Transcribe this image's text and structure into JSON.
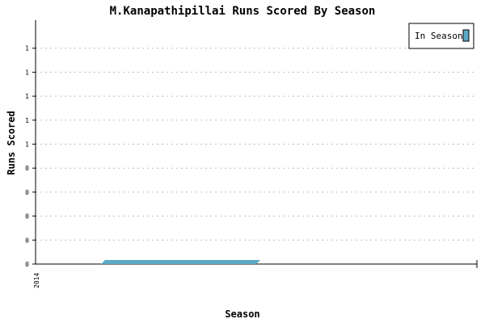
{
  "chart_data": {
    "type": "area",
    "title": "M.Kanapathipillai Runs Scored By Season",
    "xlabel": "Season",
    "ylabel": "Runs Scored",
    "x_tick_labels": [
      "2014"
    ],
    "y_tick_labels": [
      "0",
      "0",
      "0",
      "0",
      "0",
      "1",
      "1",
      "1",
      "1",
      "1"
    ],
    "ylim": [
      0,
      1
    ],
    "grid": true,
    "legend_position": "top-right",
    "series": [
      {
        "name": "In Season",
        "x": [
          "2014"
        ],
        "values": [
          0
        ],
        "color": "#5ba8c4"
      }
    ]
  }
}
